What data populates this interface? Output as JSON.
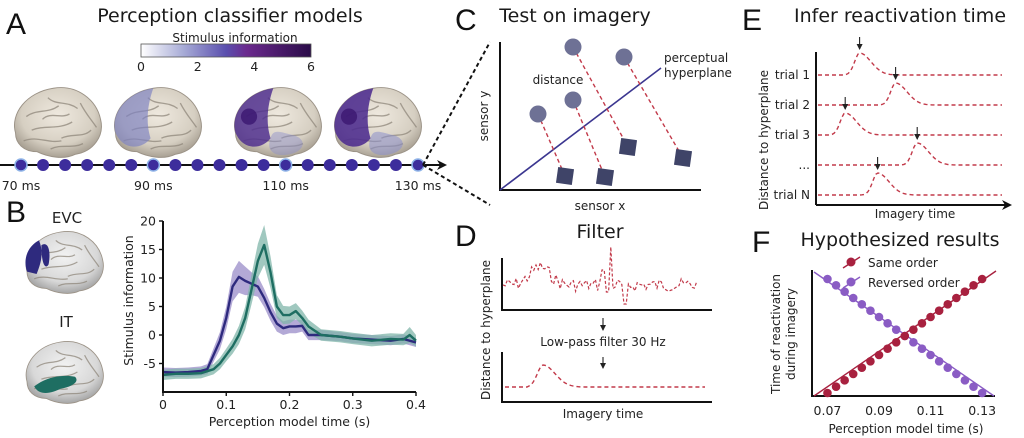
{
  "panels": {
    "A": {
      "letter": "A",
      "title": "Perception classifier models",
      "colorbar": {
        "label": "Stimulus information",
        "ticks": [
          "0",
          "2",
          "4",
          "6"
        ],
        "range": [
          0,
          6
        ],
        "colors": [
          "#ffffff",
          "#a7abd6",
          "#5a4fae",
          "#6b2a8e",
          "#2a0b48"
        ]
      },
      "brains": [
        {
          "time": "70 ms",
          "info_level": 0.0
        },
        {
          "time": "90 ms",
          "info_level": 0.35
        },
        {
          "time": "110 ms",
          "info_level": 0.75
        },
        {
          "time": "130 ms",
          "info_level": 0.9
        }
      ],
      "timeline": {
        "dot_count": 19,
        "labels": [
          "70 ms",
          "90 ms",
          "110 ms",
          "130 ms"
        ],
        "labeled_indices": [
          0,
          6,
          12,
          18
        ],
        "dot_color": "#3d2d9c",
        "highlight_color": "#8fb4e8"
      }
    },
    "B": {
      "letter": "B",
      "regions": [
        {
          "name": "EVC",
          "color": "#2e2a7e"
        },
        {
          "name": "IT",
          "color": "#1e6e62"
        }
      ]
    },
    "C": {
      "letter": "C",
      "title": "Test on imagery",
      "xlabel": "sensor x",
      "ylabel": "sensor y",
      "distance_label": "distance",
      "hyperplane_label_1": "perceptual",
      "hyperplane_label_2": "hyperplane",
      "point_color": "#6e7195",
      "square_color": "#3f4468",
      "hyperplane_color": "#3b3690"
    },
    "D": {
      "letter": "D",
      "title": "Filter",
      "ylabel": "Distance to hyperplane",
      "filter_label": "Low-pass filter 30 Hz",
      "xlabel": "Imagery time"
    },
    "E": {
      "letter": "E",
      "title": "Infer reactivation time",
      "ylabel": "Distance to hyperplane",
      "xlabel": "Imagery time",
      "trials": [
        {
          "label": "trial 1",
          "peak": 0.22
        },
        {
          "label": "trial 2",
          "peak": 0.42
        },
        {
          "label": "trial 3",
          "peak": 0.14
        },
        {
          "label": "...",
          "peak": 0.54
        },
        {
          "label": "trial N",
          "peak": 0.32
        }
      ]
    },
    "F": {
      "letter": "F",
      "title": "Hypothesized results",
      "ylabel_1": "Time of reactivation",
      "ylabel_2": "during imagery",
      "xlabel": "Perception model time (s)",
      "legend": [
        {
          "label": "Same order",
          "color": "#a8213f"
        },
        {
          "label": "Reversed order",
          "color": "#8a5cc4"
        }
      ]
    }
  },
  "chart_data": [
    {
      "type": "line",
      "panel": "B",
      "title": "",
      "xlabel": "Perception model time (s)",
      "ylabel": "Stimulus information",
      "xlim": [
        0,
        0.4
      ],
      "ylim": [
        -10,
        20
      ],
      "xticks": [
        "0",
        "0.1",
        "0.2",
        "0.3",
        "0.4"
      ],
      "yticks": [
        "-5",
        "0",
        "5",
        "10",
        "15",
        "20"
      ],
      "xtick_values": [
        0,
        0.1,
        0.2,
        0.3,
        0.4
      ],
      "ytick_values": [
        -5,
        0,
        5,
        10,
        15,
        20
      ],
      "grid": false,
      "series": [
        {
          "name": "EVC",
          "color": "#2e2a7e",
          "band_color": "#9a8cc8",
          "x": [
            0,
            0.02,
            0.04,
            0.06,
            0.07,
            0.08,
            0.09,
            0.1,
            0.11,
            0.12,
            0.13,
            0.14,
            0.15,
            0.16,
            0.17,
            0.18,
            0.19,
            0.2,
            0.21,
            0.22,
            0.23,
            0.25,
            0.28,
            0.3,
            0.33,
            0.36,
            0.38,
            0.4
          ],
          "y": [
            -6.5,
            -6.6,
            -6.5,
            -6.3,
            -6,
            -3.5,
            -1,
            3,
            8.5,
            10.2,
            9.5,
            9,
            8.5,
            6.5,
            4,
            2,
            1.2,
            1.5,
            1.5,
            1.6,
            0,
            0,
            -0.3,
            -0.6,
            -0.8,
            -1,
            -0.7,
            -1.3
          ],
          "err": [
            0.8,
            0.8,
            0.8,
            0.8,
            0.9,
            1.2,
            1.5,
            2,
            2.6,
            2.8,
            2.5,
            2,
            1.8,
            1.6,
            1.5,
            1.4,
            1.2,
            1.2,
            1.2,
            1,
            0.9,
            0.9,
            0.8,
            0.8,
            0.8,
            0.8,
            0.8,
            0.8
          ]
        },
        {
          "name": "IT",
          "color": "#1e6e62",
          "band_color": "#80b5aa",
          "x": [
            0,
            0.02,
            0.04,
            0.06,
            0.08,
            0.09,
            0.1,
            0.11,
            0.12,
            0.13,
            0.14,
            0.15,
            0.16,
            0.17,
            0.18,
            0.19,
            0.2,
            0.21,
            0.22,
            0.23,
            0.25,
            0.28,
            0.3,
            0.33,
            0.36,
            0.38,
            0.39,
            0.4
          ],
          "y": [
            -7,
            -6.8,
            -6.8,
            -6.7,
            -6,
            -5,
            -3.5,
            -2,
            0,
            3,
            8,
            13,
            15.8,
            11,
            5,
            3.5,
            3.5,
            4.2,
            3,
            1.5,
            0,
            -0.3,
            -0.6,
            -1,
            -0.7,
            -0.8,
            0,
            -1
          ],
          "err": [
            0.9,
            0.9,
            0.9,
            0.9,
            0.9,
            1,
            1.1,
            1.3,
            1.6,
            2,
            2.6,
            3,
            3.5,
            2.8,
            2,
            1.6,
            1.5,
            1.4,
            1.3,
            1.2,
            1,
            1,
            1,
            1,
            1,
            1,
            1.4,
            1
          ]
        }
      ]
    },
    {
      "type": "scatter",
      "panel": "F",
      "title": "Hypothesized results",
      "xlabel": "Perception model time (s)",
      "ylabel": "Time of reactivation during imagery",
      "xlim": [
        0.064,
        0.135
      ],
      "xticks": [
        "0.07",
        "0.09",
        "0.11",
        "0.13"
      ],
      "xtick_values": [
        0.07,
        0.09,
        0.11,
        0.13
      ],
      "legend_position": "top",
      "n_points": 19,
      "x_range": [
        0.07,
        0.13
      ],
      "series": [
        {
          "name": "Same order",
          "color": "#a8213f",
          "direction": "increasing"
        },
        {
          "name": "Reversed order",
          "color": "#8a5cc4",
          "direction": "decreasing"
        }
      ]
    }
  ]
}
